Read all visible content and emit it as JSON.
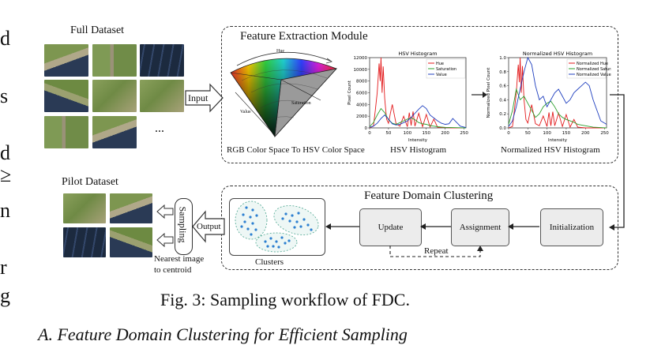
{
  "left_fragments": [
    "d",
    "s",
    "d",
    "≥",
    "n",
    "r",
    "g"
  ],
  "full_dataset": {
    "title": "Full Dataset",
    "ellipsis": "..."
  },
  "input_label": "Input",
  "feature_extraction": {
    "title": "Feature Extraction Module",
    "cone_caption": "RGB Color Space To HSV Color Space",
    "cone_labels": {
      "hue": "Hue",
      "saturation": "Saturation",
      "value": "Value"
    },
    "hist_caption": "HSV Histogram",
    "norm_caption": "Normalized HSV Histogram"
  },
  "chart_data": [
    {
      "type": "line",
      "title": "HSV Histogram",
      "xlabel": "Intensity",
      "ylabel": "Pixel Count",
      "xlim": [
        0,
        255
      ],
      "ylim": [
        0,
        12000
      ],
      "xticks": [
        0,
        50,
        100,
        150,
        200,
        250
      ],
      "yticks": [
        0,
        2000,
        4000,
        6000,
        8000,
        10000,
        12000
      ],
      "legend_position": "top-right",
      "series": [
        {
          "name": "Hue",
          "color": "#e31a1c",
          "x": [
            0,
            10,
            15,
            20,
            25,
            28,
            30,
            33,
            36,
            40,
            45,
            50,
            55,
            60,
            70,
            80,
            90,
            100,
            105,
            110,
            115,
            120,
            130,
            140,
            150,
            160,
            170,
            180,
            200,
            220,
            255
          ],
          "y": [
            0,
            300,
            3000,
            6000,
            11000,
            8000,
            12000,
            6000,
            10500,
            5000,
            1500,
            800,
            2500,
            4000,
            700,
            300,
            2000,
            200,
            2600,
            400,
            2800,
            300,
            2500,
            200,
            2300,
            150,
            1500,
            100,
            50,
            0,
            0
          ]
        },
        {
          "name": "Saturation",
          "color": "#2ca02c",
          "x": [
            0,
            10,
            20,
            30,
            40,
            50,
            60,
            70,
            80,
            90,
            100,
            110,
            120,
            130,
            140,
            150,
            160,
            170,
            180,
            190,
            200,
            220,
            255
          ],
          "y": [
            200,
            900,
            2200,
            3300,
            2600,
            1400,
            800,
            600,
            900,
            1200,
            1500,
            1700,
            1400,
            900,
            700,
            600,
            400,
            300,
            200,
            150,
            100,
            50,
            0
          ]
        },
        {
          "name": "Value",
          "color": "#1f3fbf",
          "x": [
            0,
            10,
            20,
            30,
            40,
            50,
            60,
            70,
            80,
            90,
            100,
            110,
            120,
            130,
            140,
            150,
            160,
            170,
            180,
            190,
            200,
            210,
            220,
            240,
            255
          ],
          "y": [
            100,
            300,
            800,
            1600,
            2200,
            1500,
            700,
            500,
            600,
            900,
            1200,
            1800,
            2500,
            3200,
            3800,
            3300,
            2200,
            1700,
            1200,
            800,
            600,
            700,
            1600,
            300,
            50
          ]
        }
      ]
    },
    {
      "type": "line",
      "title": "Normalized HSV Histogram",
      "xlabel": "Intensity",
      "ylabel": "Normalized Pixel Count",
      "xlim": [
        0,
        255
      ],
      "ylim": [
        0,
        1.0
      ],
      "xticks": [
        0,
        50,
        100,
        150,
        200,
        250
      ],
      "yticks": [
        0.0,
        0.2,
        0.4,
        0.6,
        0.8,
        1.0
      ],
      "legend_position": "top-right",
      "series": [
        {
          "name": "Normalized Hue",
          "color": "#e31a1c",
          "x": [
            0,
            10,
            15,
            20,
            25,
            28,
            30,
            33,
            36,
            40,
            45,
            50,
            55,
            60,
            70,
            80,
            90,
            100,
            105,
            110,
            115,
            120,
            130,
            140,
            150,
            160,
            170,
            180,
            200,
            220,
            255
          ],
          "y": [
            0,
            0.02,
            0.25,
            0.5,
            0.9,
            0.65,
            1.0,
            0.5,
            0.88,
            0.4,
            0.12,
            0.07,
            0.2,
            0.33,
            0.06,
            0.03,
            0.17,
            0.02,
            0.22,
            0.03,
            0.23,
            0.03,
            0.21,
            0.02,
            0.19,
            0.01,
            0.12,
            0.01,
            0.0,
            0.0,
            0.0
          ]
        },
        {
          "name": "Normalized Saturation",
          "color": "#2ca02c",
          "x": [
            0,
            10,
            20,
            30,
            40,
            50,
            60,
            70,
            80,
            90,
            100,
            110,
            120,
            130,
            140,
            150,
            160,
            170,
            180,
            190,
            200,
            220,
            255
          ],
          "y": [
            0.05,
            0.25,
            0.55,
            0.4,
            0.45,
            0.35,
            0.25,
            0.15,
            0.2,
            0.3,
            0.35,
            0.38,
            0.3,
            0.2,
            0.15,
            0.12,
            0.1,
            0.08,
            0.05,
            0.04,
            0.03,
            0.01,
            0.0
          ]
        },
        {
          "name": "Normalized Value",
          "color": "#1f3fbf",
          "x": [
            0,
            10,
            20,
            30,
            40,
            50,
            60,
            70,
            80,
            90,
            100,
            110,
            120,
            130,
            140,
            150,
            160,
            170,
            180,
            190,
            200,
            210,
            220,
            240,
            255
          ],
          "y": [
            0.02,
            0.1,
            0.3,
            0.55,
            0.8,
            1.0,
            0.9,
            0.6,
            0.4,
            0.45,
            0.3,
            0.4,
            0.5,
            0.55,
            0.45,
            0.35,
            0.4,
            0.5,
            0.55,
            0.6,
            0.65,
            0.6,
            0.4,
            0.1,
            0.05
          ]
        }
      ]
    }
  ],
  "fdc": {
    "title": "Feature Domain Clustering",
    "initialization": "Initialization",
    "assignment": "Assignment",
    "update": "Update",
    "repeat": "Repeat",
    "clusters": "Clusters"
  },
  "output_label": "Output",
  "sampling_label": "Sampling",
  "nearest_line1": "Nearest image",
  "nearest_line2": "to centroid",
  "pilot_dataset": "Pilot Dataset",
  "figure_caption": "Fig. 3: Sampling workflow of FDC.",
  "section_heading": "A.  Feature Domain Clustering for Efficient Sampling"
}
